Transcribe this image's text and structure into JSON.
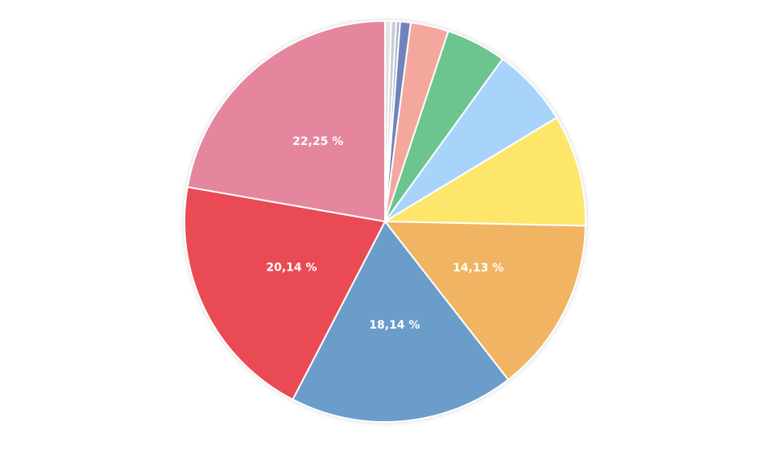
{
  "chart_data": {
    "type": "pie",
    "values": [
      0.5,
      0.4,
      0.31,
      0.84,
      3.06,
      4.86,
      6.37,
      9.0,
      14.13,
      18.14,
      20.14,
      22.25
    ],
    "value_labels": [
      null,
      null,
      null,
      null,
      null,
      null,
      null,
      null,
      "14,13 %",
      "18,14 %",
      "20,14 %",
      "22,25 %"
    ],
    "colors": [
      "#e3e4e6",
      "#c9ccd2",
      "#a9b6cf",
      "#7083bd",
      "#f4a79d",
      "#6cc48e",
      "#a8d4fb",
      "#fde66a",
      "#f1b462",
      "#6b9dcb",
      "#ea4a53",
      "#e6869e"
    ]
  }
}
